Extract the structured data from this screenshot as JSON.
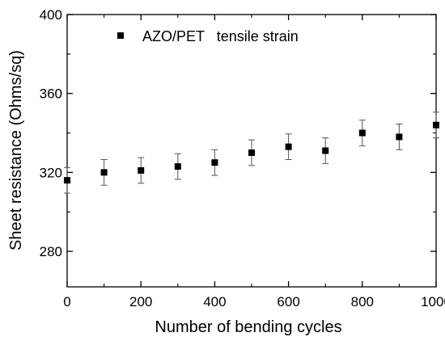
{
  "chart_data": {
    "type": "scatter",
    "xlabel": "Number of bending cycles",
    "ylabel": "Sheet resistance (Ohms/sq)",
    "xlim": [
      0,
      1000
    ],
    "ylim": [
      262,
      400
    ],
    "x_ticks": [
      0,
      200,
      400,
      600,
      800,
      1000
    ],
    "y_ticks": [
      280,
      320,
      360,
      400
    ],
    "grid": false,
    "legend_position": "top-left",
    "series": [
      {
        "name": "AZO/PET   tensile strain",
        "x": [
          0,
          100,
          200,
          300,
          400,
          500,
          600,
          700,
          800,
          900,
          1000
        ],
        "y": [
          316,
          320,
          321,
          323,
          325,
          330,
          333,
          331,
          340,
          338,
          344
        ],
        "error": [
          6.5,
          6.5,
          6.5,
          6.5,
          6.5,
          6.5,
          6.5,
          6.5,
          6.5,
          6.5,
          6.5
        ],
        "marker": "square",
        "color": "#000000"
      }
    ]
  }
}
